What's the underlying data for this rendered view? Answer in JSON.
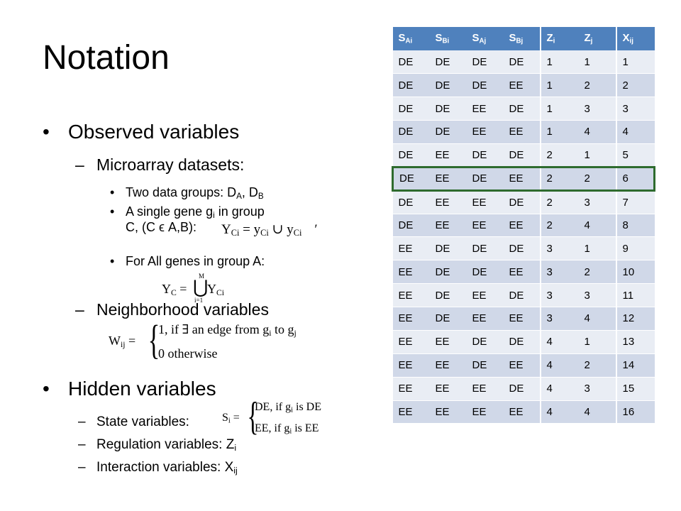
{
  "title": "Notation",
  "observed": {
    "heading": "Observed variables",
    "microarray": "Microarray datasets:",
    "groups_prefix": "Two data groups: D",
    "groups_sub_a": "A",
    "groups_sep": ", D",
    "groups_sub_b": "B",
    "gene_line1_prefix": "A  single gene g",
    "gene_line1_sub": "i",
    "gene_line1_suffix": " in group",
    "gene_line2": "C, (C ϵ A,B):",
    "eq_yci": "Y",
    "eq_yci_sub": "Ci",
    "eq_yci_rest": " = y",
    "eq_yci_rest_sub": "Ci",
    "eq_yci_union": " ∪ y",
    "eq_yci_union_sub": "Ci",
    "eq_yci_tail": "′",
    "all_genes": "For All genes in group A:",
    "eq_yc": "Y",
    "eq_yc_sub": "C",
    "eq_yc_eq": " = ",
    "eq_yc_union": "⋃",
    "eq_yc_top": "M",
    "eq_yc_bottom": "i=1",
    "eq_yc_y": " Y",
    "eq_yc_y_sub": "Ci",
    "neighborhood": "Neighborhood variables",
    "eq_w": "W",
    "eq_w_sub": "ij",
    "eq_w_eq": " = ",
    "eq_w_case1": "1, if ∃ an edge from g",
    "eq_w_case1_sub_i": "i",
    "eq_w_case1_to": " to g",
    "eq_w_case1_sub_j": "j",
    "eq_w_case2": "0 otherwise"
  },
  "hidden": {
    "heading": "Hidden variables",
    "state": "State variables: ",
    "eq_s": "S",
    "eq_s_sub": "i",
    "eq_s_eq": " = ",
    "eq_s_case1": "DE, if g",
    "eq_s_case1_sub": "i",
    "eq_s_case1_tail": " is DE",
    "eq_s_case2": "EE, if g",
    "eq_s_case2_sub": "i",
    "eq_s_case2_tail": " is EE",
    "regulation": "Regulation variables:  Z",
    "regulation_sub": "i",
    "interaction": "Interaction variables: X",
    "interaction_sub": "ij"
  },
  "table": {
    "headers": [
      {
        "main": "S",
        "sub": "Ai"
      },
      {
        "main": "S",
        "sub": "Bi"
      },
      {
        "main": "S",
        "sub": "Aj"
      },
      {
        "main": "S",
        "sub": "Bj"
      },
      {
        "main": "Z",
        "sub": "i"
      },
      {
        "main": "Z",
        "sub": "j"
      },
      {
        "main": "X",
        "sub": "ij"
      }
    ],
    "highlight_row": 5,
    "header_color": "#4f81bd",
    "highlight_color": "#2e6b2e",
    "rows": [
      [
        "DE",
        "DE",
        "DE",
        "DE",
        "1",
        "1",
        "1"
      ],
      [
        "DE",
        "DE",
        "DE",
        "EE",
        "1",
        "2",
        "2"
      ],
      [
        "DE",
        "DE",
        "EE",
        "DE",
        "1",
        "3",
        "3"
      ],
      [
        "DE",
        "DE",
        "EE",
        "EE",
        "1",
        "4",
        "4"
      ],
      [
        "DE",
        "EE",
        "DE",
        "DE",
        "2",
        "1",
        "5"
      ],
      [
        "DE",
        "EE",
        "DE",
        "EE",
        "2",
        "2",
        "6"
      ],
      [
        "DE",
        "EE",
        "EE",
        "DE",
        "2",
        "3",
        "7"
      ],
      [
        "DE",
        "EE",
        "EE",
        "EE",
        "2",
        "4",
        "8"
      ],
      [
        "EE",
        "DE",
        "DE",
        "DE",
        "3",
        "1",
        "9"
      ],
      [
        "EE",
        "DE",
        "DE",
        "EE",
        "3",
        "2",
        "10"
      ],
      [
        "EE",
        "DE",
        "EE",
        "DE",
        "3",
        "3",
        "11"
      ],
      [
        "EE",
        "DE",
        "EE",
        "EE",
        "3",
        "4",
        "12"
      ],
      [
        "EE",
        "EE",
        "DE",
        "DE",
        "4",
        "1",
        "13"
      ],
      [
        "EE",
        "EE",
        "DE",
        "EE",
        "4",
        "2",
        "14"
      ],
      [
        "EE",
        "EE",
        "EE",
        "DE",
        "4",
        "3",
        "15"
      ],
      [
        "EE",
        "EE",
        "EE",
        "EE",
        "4",
        "4",
        "16"
      ]
    ]
  }
}
